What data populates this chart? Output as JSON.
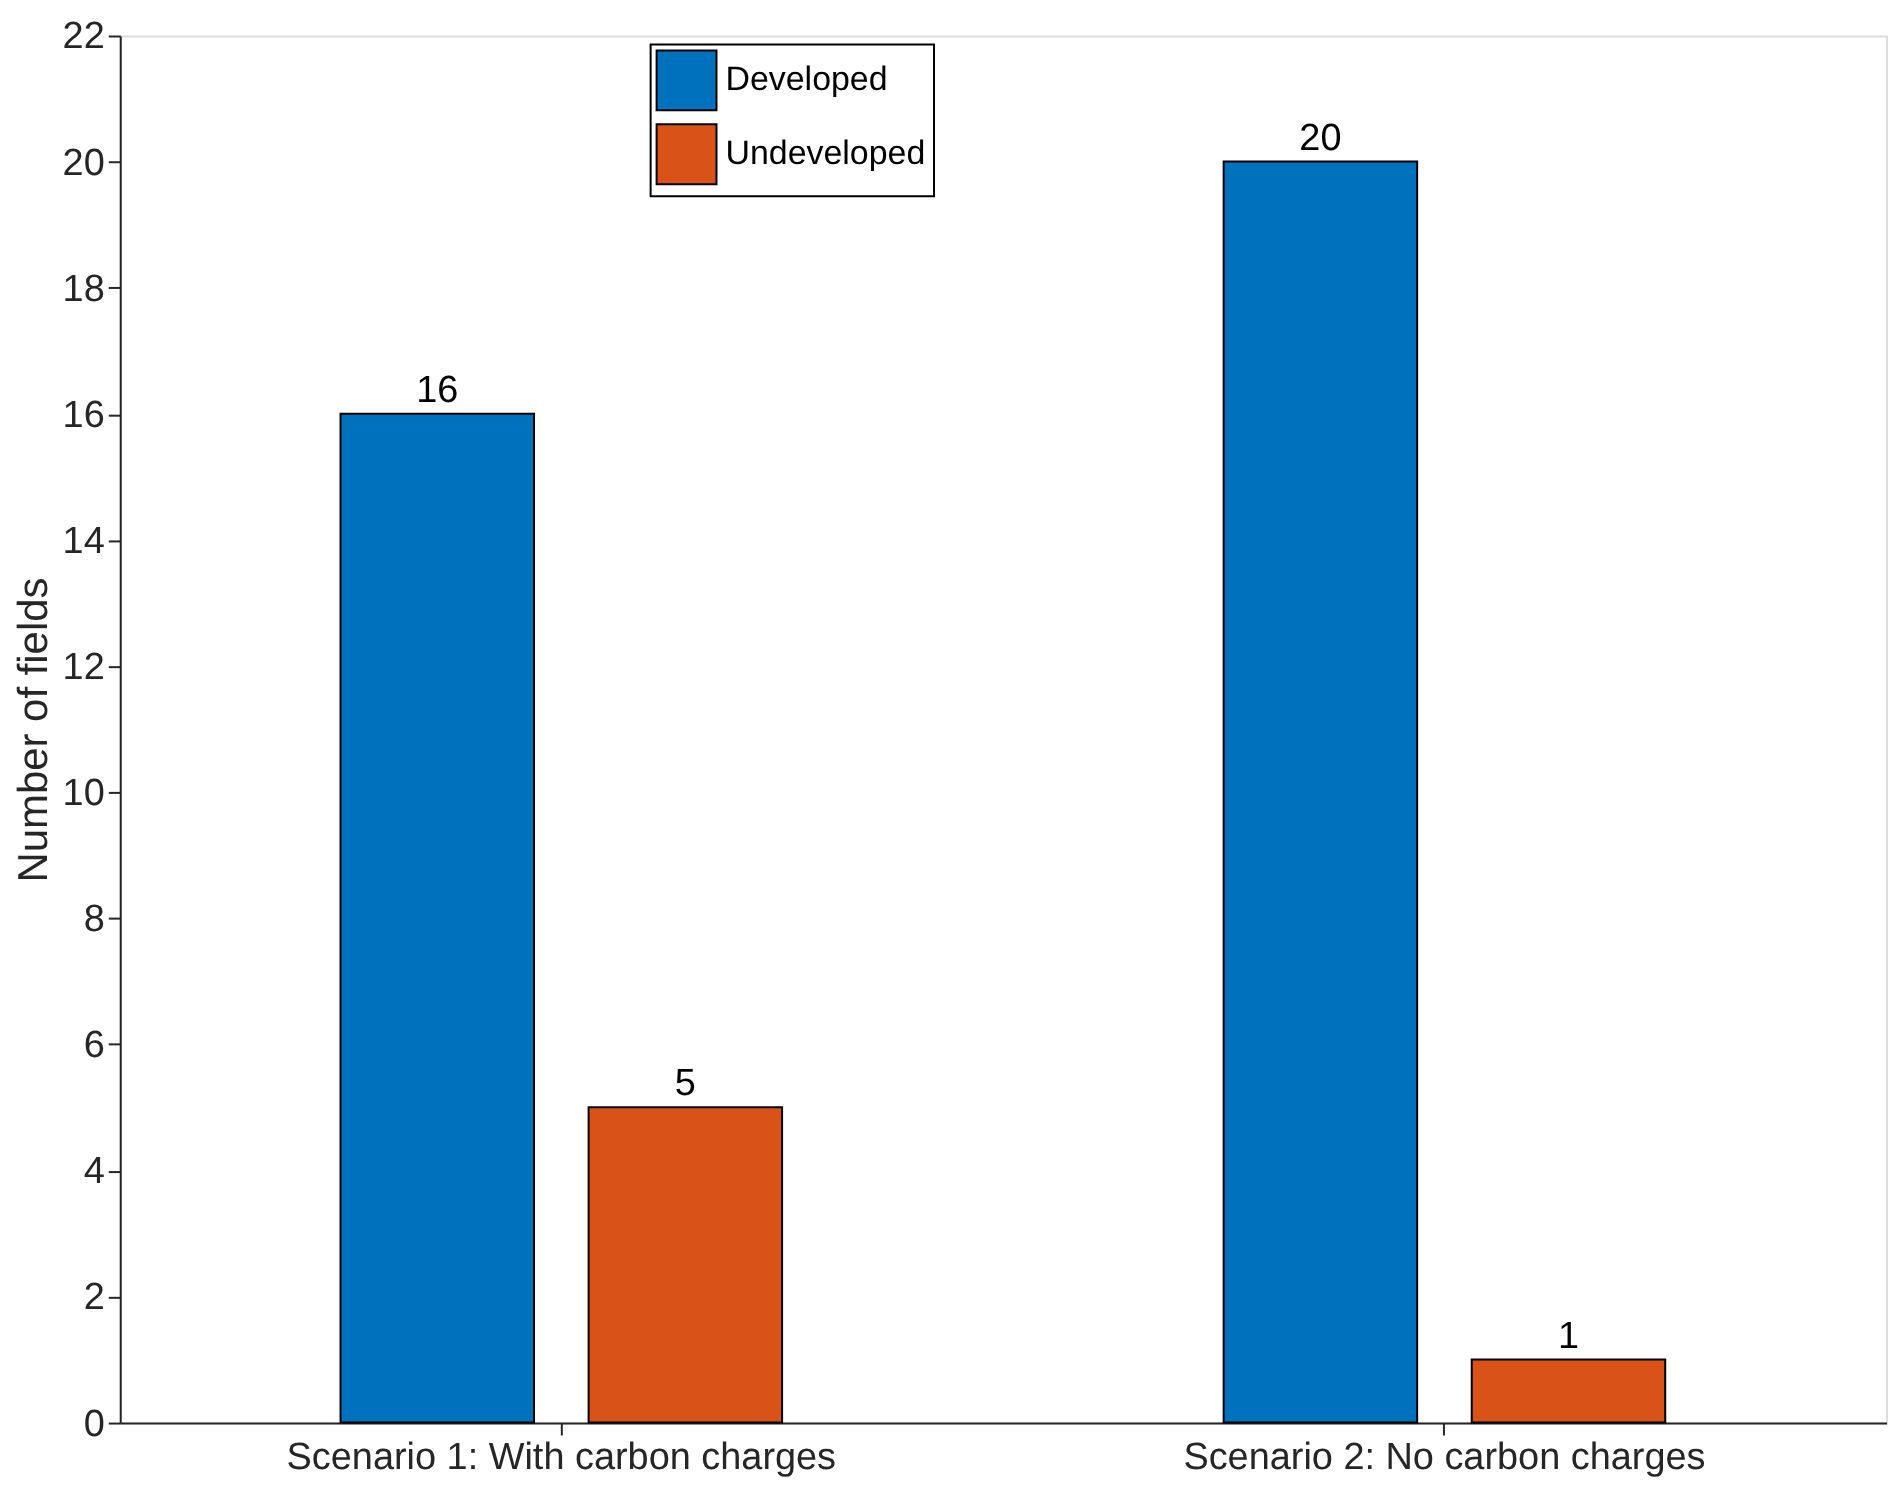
{
  "chart_data": {
    "type": "bar",
    "ylabel": "Number of fields",
    "categories": [
      "Scenario 1: With carbon charges",
      "Scenario 2: No carbon charges"
    ],
    "series": [
      {
        "name": "Developed",
        "color": "#0072bd",
        "values": [
          16,
          20
        ]
      },
      {
        "name": "Undeveloped",
        "color": "#d95319",
        "values": [
          5,
          1
        ]
      }
    ],
    "ylim": [
      0,
      22
    ],
    "yticks": [
      0,
      2,
      4,
      6,
      8,
      10,
      12,
      14,
      16,
      18,
      20,
      22
    ],
    "data_labels": true,
    "legend": "top",
    "grid": false
  }
}
